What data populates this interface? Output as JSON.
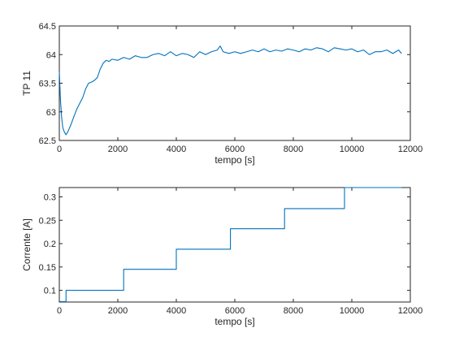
{
  "chart_data": [
    {
      "type": "line",
      "xlabel": "tempo [s]",
      "ylabel": "TP 11",
      "xlim": [
        0,
        12000
      ],
      "ylim": [
        62.5,
        64.5
      ],
      "xticks": [
        0,
        2000,
        4000,
        6000,
        8000,
        10000,
        12000
      ],
      "yticks": [
        62.5,
        63,
        63.5,
        64,
        64.5
      ],
      "x_tick_labels": [
        "0",
        "2000",
        "4000",
        "6000",
        "8000",
        "10000",
        "12000"
      ],
      "y_tick_labels": [
        "62.5",
        "63",
        "63.5",
        "64",
        "64.5"
      ],
      "grid": false,
      "series": [
        {
          "color": "#0072bd",
          "x": [
            0,
            40,
            80,
            120,
            170,
            230,
            300,
            400,
            500,
            600,
            700,
            800,
            900,
            1000,
            1100,
            1200,
            1300,
            1400,
            1500,
            1600,
            1700,
            1800,
            2000,
            2200,
            2400,
            2600,
            2800,
            3000,
            3200,
            3400,
            3600,
            3800,
            4000,
            4200,
            4400,
            4600,
            4800,
            5000,
            5200,
            5400,
            5500,
            5600,
            5800,
            6000,
            6200,
            6400,
            6600,
            6800,
            7000,
            7200,
            7400,
            7600,
            7800,
            8000,
            8200,
            8400,
            8600,
            8800,
            9000,
            9200,
            9400,
            9600,
            9800,
            10000,
            10200,
            10400,
            10600,
            10800,
            11000,
            11200,
            11400,
            11600,
            11700
          ],
          "y": [
            63.7,
            63.2,
            62.9,
            62.72,
            62.65,
            62.6,
            62.66,
            62.78,
            62.92,
            63.05,
            63.15,
            63.25,
            63.4,
            63.5,
            63.52,
            63.55,
            63.6,
            63.75,
            63.85,
            63.9,
            63.88,
            63.92,
            63.9,
            63.95,
            63.92,
            63.98,
            63.95,
            63.95,
            64.0,
            64.02,
            63.98,
            64.05,
            63.98,
            64.02,
            64.0,
            63.95,
            64.05,
            64.0,
            64.05,
            64.08,
            64.15,
            64.05,
            64.02,
            64.05,
            64.02,
            64.05,
            64.08,
            64.05,
            64.1,
            64.05,
            64.08,
            64.06,
            64.1,
            64.08,
            64.05,
            64.1,
            64.08,
            64.12,
            64.1,
            64.05,
            64.12,
            64.1,
            64.08,
            64.1,
            64.05,
            64.08,
            64.0,
            64.05,
            64.05,
            64.08,
            64.02,
            64.08,
            64.02
          ]
        }
      ]
    },
    {
      "type": "line",
      "xlabel": "tempo [s]",
      "ylabel": "Corrente [A]",
      "xlim": [
        0,
        12000
      ],
      "ylim": [
        0.075,
        0.32
      ],
      "xticks": [
        0,
        2000,
        4000,
        6000,
        8000,
        10000,
        12000
      ],
      "yticks": [
        0.1,
        0.15,
        0.2,
        0.25,
        0.3
      ],
      "x_tick_labels": [
        "0",
        "2000",
        "4000",
        "6000",
        "8000",
        "10000",
        "12000"
      ],
      "y_tick_labels": [
        "0.1",
        "0.15",
        "0.2",
        "0.25",
        "0.3"
      ],
      "grid": false,
      "series": [
        {
          "color": "#0072bd",
          "x": [
            0,
            230,
            230,
            2200,
            2200,
            4000,
            4000,
            5850,
            5850,
            7700,
            7700,
            9750,
            9750,
            11700
          ],
          "y": [
            0.076,
            0.076,
            0.1,
            0.1,
            0.145,
            0.145,
            0.188,
            0.188,
            0.232,
            0.232,
            0.275,
            0.275,
            0.32,
            0.32
          ]
        }
      ]
    }
  ]
}
